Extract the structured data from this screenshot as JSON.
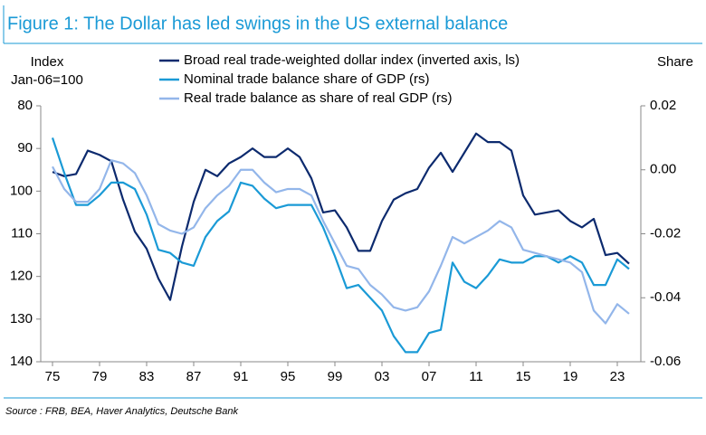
{
  "chart_data": {
    "type": "line",
    "title": "Figure 1: The Dollar has led swings in the US external balance",
    "y_label": [
      "Index",
      "Jan-06=100"
    ],
    "y2_label": "Share",
    "source": "Source : FRB, BEA, Haver Analytics, Deutsche Bank",
    "x": [
      1975,
      1976,
      1977,
      1978,
      1979,
      1980,
      1981,
      1982,
      1983,
      1984,
      1985,
      1986,
      1987,
      1988,
      1989,
      1990,
      1991,
      1992,
      1993,
      1994,
      1995,
      1996,
      1997,
      1998,
      1999,
      2000,
      2001,
      2002,
      2003,
      2004,
      2005,
      2006,
      2007,
      2008,
      2009,
      2010,
      2011,
      2012,
      2013,
      2014,
      2015,
      2016,
      2017,
      2018,
      2019,
      2020,
      2021,
      2022,
      2023,
      2024
    ],
    "xlim": [
      1974,
      2025
    ],
    "xticks": [
      {
        "value": 1975,
        "label": "75"
      },
      {
        "value": 1979,
        "label": "79"
      },
      {
        "value": 1983,
        "label": "83"
      },
      {
        "value": 1987,
        "label": "87"
      },
      {
        "value": 1991,
        "label": "91"
      },
      {
        "value": 1995,
        "label": "95"
      },
      {
        "value": 1999,
        "label": "99"
      },
      {
        "value": 2003,
        "label": "03"
      },
      {
        "value": 2007,
        "label": "07"
      },
      {
        "value": 2011,
        "label": "11"
      },
      {
        "value": 2015,
        "label": "15"
      },
      {
        "value": 2019,
        "label": "19"
      },
      {
        "value": 2023,
        "label": "23"
      }
    ],
    "ylim": [
      80,
      140
    ],
    "y_inverted": true,
    "yticks": [
      80,
      90,
      100,
      110,
      120,
      130,
      140
    ],
    "y2lim": [
      0.02,
      -0.06
    ],
    "y2ticks": [
      0.02,
      {
        "value": 0,
        "label": "0.00"
      },
      -0.02,
      -0.04,
      -0.06
    ],
    "series": [
      {
        "name": "Broad real trade-weighted dollar index (inverted axis, ls)",
        "color": "#0c2a6e",
        "axis": "y",
        "values": [
          95.5,
          96.5,
          96,
          90.5,
          91.5,
          93,
          102,
          109.5,
          113.5,
          120.5,
          125.5,
          113,
          102.5,
          95,
          96.5,
          93.5,
          92,
          90,
          92,
          92,
          90,
          92,
          97,
          105,
          104.5,
          108.5,
          114,
          114,
          107,
          102,
          100.5,
          99.5,
          94.5,
          91,
          95.5,
          91,
          86.5,
          88.5,
          88.5,
          90.5,
          101,
          105.5,
          105,
          104.5,
          107,
          108.5,
          106.5,
          115,
          114.5,
          117
        ]
      },
      {
        "name": "Nominal trade balance share of GDP (rs)",
        "color": "#1a9ad6",
        "axis": "y2",
        "values": [
          0.01,
          -0.001,
          -0.011,
          -0.011,
          -0.008,
          -0.004,
          -0.004,
          -0.006,
          -0.014,
          -0.025,
          -0.026,
          -0.029,
          -0.03,
          -0.021,
          -0.016,
          -0.013,
          -0.004,
          -0.005,
          -0.009,
          -0.012,
          -0.011,
          -0.011,
          -0.011,
          -0.018,
          -0.027,
          -0.037,
          -0.036,
          -0.04,
          -0.044,
          -0.052,
          -0.057,
          -0.057,
          -0.051,
          -0.05,
          -0.029,
          -0.035,
          -0.037,
          -0.033,
          -0.028,
          -0.029,
          -0.029,
          -0.027,
          -0.027,
          -0.029,
          -0.027,
          -0.029,
          -0.036,
          -0.036,
          -0.028,
          -0.031
        ]
      },
      {
        "name": "Real trade balance as share of real GDP (rs)",
        "color": "#93b6ea",
        "axis": "y2",
        "values": [
          0.001,
          -0.006,
          -0.01,
          -0.01,
          -0.006,
          0.003,
          0.002,
          -0.001,
          -0.008,
          -0.017,
          -0.019,
          -0.02,
          -0.018,
          -0.012,
          -0.008,
          -0.005,
          0,
          0,
          -0.004,
          -0.007,
          -0.006,
          -0.006,
          -0.008,
          -0.016,
          -0.023,
          -0.03,
          -0.031,
          -0.036,
          -0.039,
          -0.043,
          -0.044,
          -0.043,
          -0.038,
          -0.03,
          -0.021,
          -0.023,
          -0.021,
          -0.019,
          -0.016,
          -0.018,
          -0.025,
          -0.026,
          -0.027,
          -0.028,
          -0.029,
          -0.032,
          -0.044,
          -0.048,
          -0.042,
          -0.045
        ]
      }
    ]
  }
}
